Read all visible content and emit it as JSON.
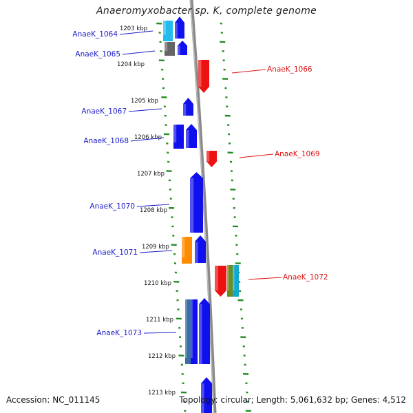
{
  "title": "Anaeromyxobacter sp. K, complete genome",
  "footer": {
    "accession": "Accession: NC_011145",
    "topology": "Topology: circular; Length: 5,061,632 bp; Genes: 4,512"
  },
  "colors": {
    "backbone": "#8a8a8a",
    "tick": "#228b22",
    "forward_label": "#1a1acc",
    "reverse_label": "#dd1111",
    "gene_blue": "#1010ee",
    "gene_red": "#ee1111",
    "gene_cyan": "#22bbee",
    "gene_gray": "#666666",
    "gene_orange": "#ff8c00",
    "gene_steel": "#3a6ea5",
    "gene_olive": "#6b8e23",
    "gene_teal": "#11aacc"
  },
  "ruler": [
    "1203 kbp",
    "1204 kbp",
    "1205 kbp",
    "1206 kbp",
    "1207 kbp",
    "1208 kbp",
    "1209 kbp",
    "1210 kbp",
    "1211 kbp",
    "1212 kbp",
    "1213 kbp"
  ],
  "genes": [
    {
      "label": "AnaeK_1064",
      "strand": "forward"
    },
    {
      "label": "AnaeK_1065",
      "strand": "forward"
    },
    {
      "label": "AnaeK_1066",
      "strand": "reverse"
    },
    {
      "label": "AnaeK_1067",
      "strand": "forward"
    },
    {
      "label": "AnaeK_1068",
      "strand": "forward"
    },
    {
      "label": "AnaeK_1069",
      "strand": "reverse"
    },
    {
      "label": "AnaeK_1070",
      "strand": "forward"
    },
    {
      "label": "AnaeK_1071",
      "strand": "forward"
    },
    {
      "label": "AnaeK_1072",
      "strand": "reverse"
    },
    {
      "label": "AnaeK_1073",
      "strand": "forward"
    }
  ]
}
